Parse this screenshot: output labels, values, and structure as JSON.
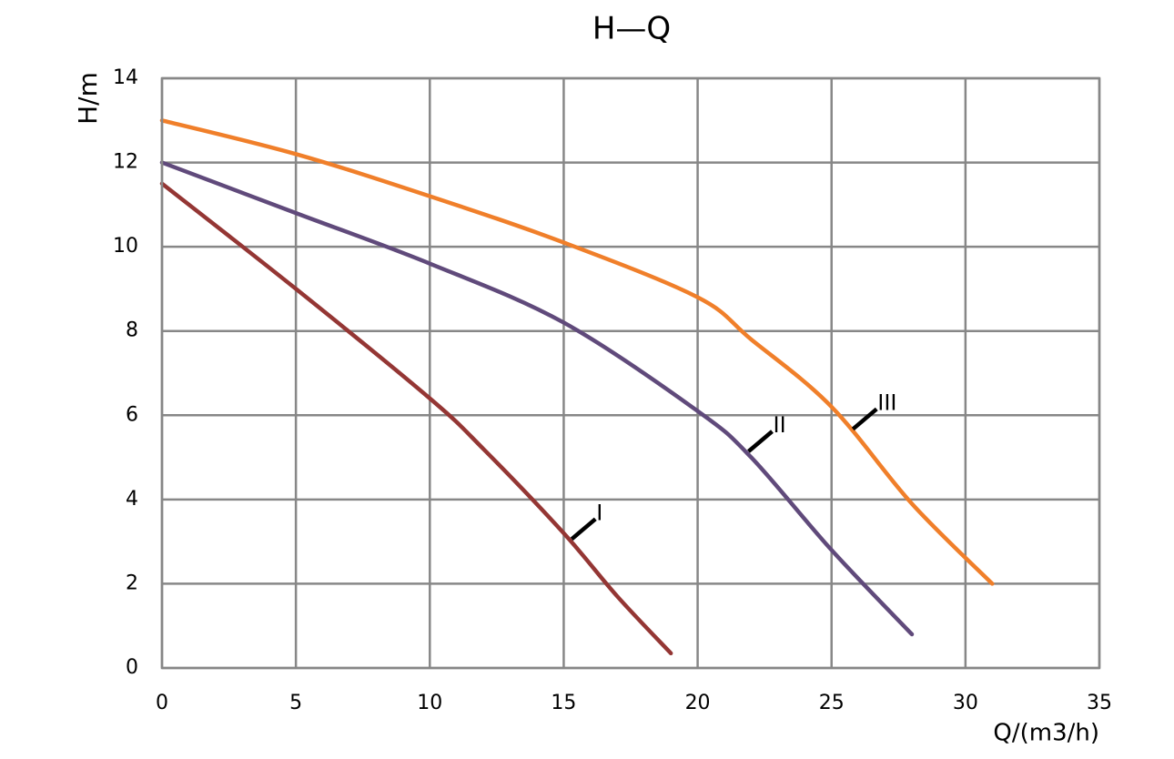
{
  "chart_data": {
    "type": "line",
    "title": "H—Q",
    "x_label": "Q/(m3/h)",
    "y_label": "H/m",
    "xlim": [
      0,
      35
    ],
    "xticks": [
      0,
      5,
      10,
      15,
      20,
      25,
      30,
      35
    ],
    "ylim": [
      0,
      14
    ],
    "yticks": [
      0,
      2,
      4,
      6,
      8,
      10,
      12,
      14
    ],
    "grid": true,
    "series": [
      {
        "name": "I",
        "color": "#943634",
        "x": [
          0,
          5,
          10,
          12,
          15,
          17,
          19
        ],
        "values": [
          11.5,
          9.0,
          6.4,
          5.2,
          3.2,
          1.7,
          0.35
        ]
      },
      {
        "name": "II",
        "color": "#604a7b",
        "x": [
          0,
          5,
          10,
          15,
          20,
          22,
          25,
          28
        ],
        "values": [
          12.0,
          10.8,
          9.6,
          8.2,
          6.1,
          5.0,
          2.8,
          0.8
        ]
      },
      {
        "name": "III",
        "color": "#f07f2a",
        "x": [
          0,
          5,
          10,
          15,
          20,
          22,
          25,
          28,
          31
        ],
        "values": [
          13.0,
          12.2,
          11.2,
          10.1,
          8.8,
          7.8,
          6.2,
          3.9,
          2.0
        ]
      }
    ]
  }
}
